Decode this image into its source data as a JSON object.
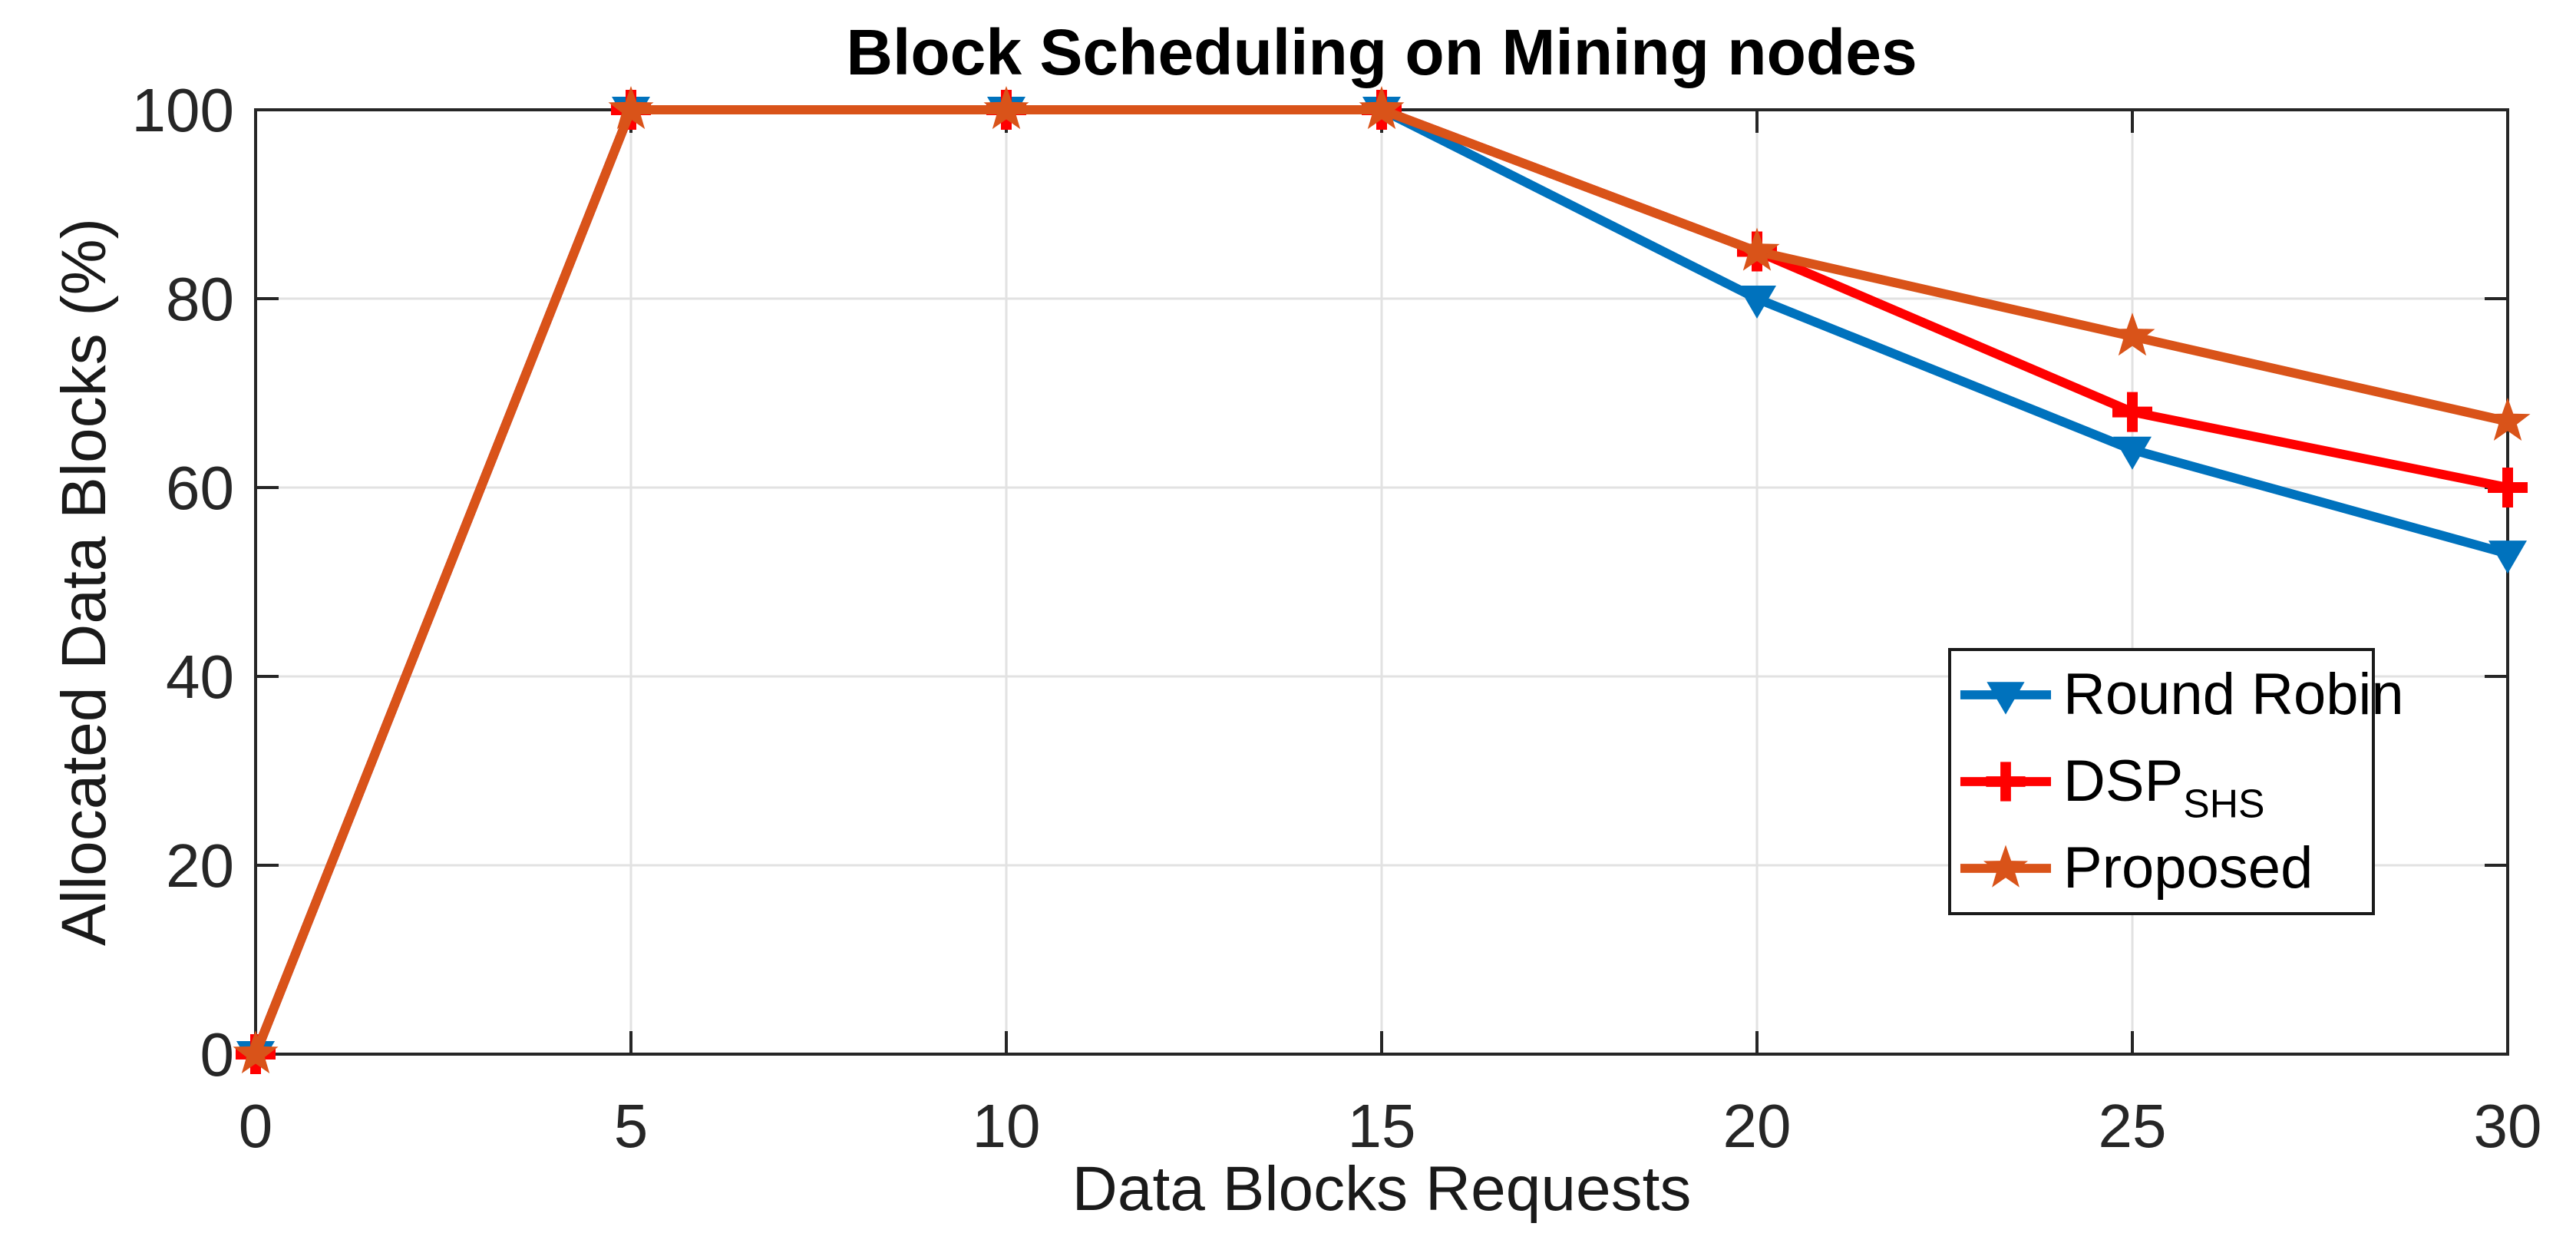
{
  "chart_data": {
    "type": "line",
    "title": "Block Scheduling on Mining nodes",
    "xlabel": "Data Blocks Requests",
    "ylabel": "Allocated Data Blocks (%)",
    "xlim": [
      0,
      30
    ],
    "ylim": [
      0,
      100
    ],
    "xticks": [
      0,
      5,
      10,
      15,
      20,
      25,
      30
    ],
    "yticks": [
      0,
      20,
      40,
      60,
      80,
      100
    ],
    "grid": true,
    "legend_position": "lower-right-inside",
    "x": [
      0,
      5,
      10,
      15,
      20,
      25,
      30
    ],
    "series": [
      {
        "name": "Round Robin",
        "subscript": "",
        "color": "#0072BD",
        "marker": "triangle-down",
        "values": [
          0,
          100,
          100,
          100,
          80,
          64,
          53
        ]
      },
      {
        "name": "DSP",
        "subscript": "SHS",
        "color": "#FF0000",
        "marker": "plus",
        "values": [
          0,
          100,
          100,
          100,
          85,
          68,
          60
        ]
      },
      {
        "name": "Proposed",
        "subscript": "",
        "color": "#D95319",
        "marker": "star5",
        "values": [
          0,
          100,
          100,
          100,
          85,
          76,
          67
        ]
      }
    ],
    "colors": {
      "axis": "#262626",
      "grid": "#E2E2E2",
      "tick_label": "#262626",
      "title": "#000000",
      "background": "#FFFFFF"
    }
  }
}
